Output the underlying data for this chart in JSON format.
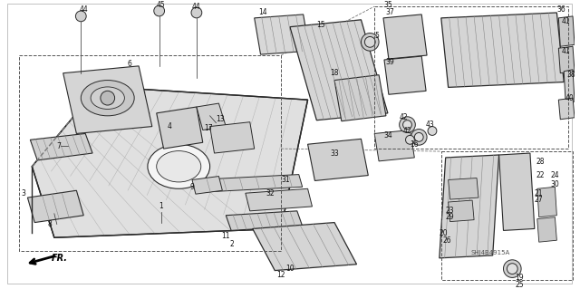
{
  "bg_color": "#ffffff",
  "diagram_code": "SHJ4B4915A",
  "fig_width": 6.4,
  "fig_height": 3.19,
  "dpi": 100,
  "line_color": "#2a2a2a",
  "fill_color": "#d8d8d8",
  "fill_light": "#eeeeee"
}
